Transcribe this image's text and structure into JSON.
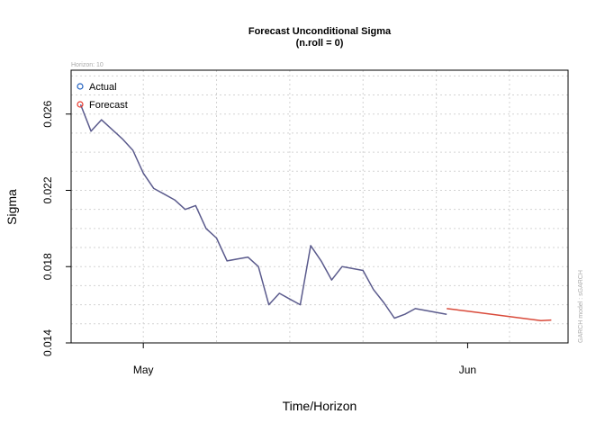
{
  "chart_data": {
    "type": "line",
    "title": "Forecast Unconditional Sigma",
    "subtitle": "(n.roll = 0)",
    "xlabel": "Time/Horizon",
    "ylabel": "Sigma",
    "top_note": "Horizon: 10",
    "side_note": "GARCH model : sGARCH",
    "xlim": [
      -6.9,
      40.6
    ],
    "ylim": [
      0.014,
      0.0283
    ],
    "x_ticks": [
      {
        "value": 0,
        "label": "May"
      },
      {
        "value": 31,
        "label": "Jun"
      }
    ],
    "y_ticks": [
      {
        "value": 0.014,
        "label": "0.014"
      },
      {
        "value": 0.018,
        "label": "0.018"
      },
      {
        "value": 0.022,
        "label": "0.022"
      },
      {
        "value": 0.026,
        "label": "0.026"
      }
    ],
    "grid": true,
    "legend_position": "top-left",
    "series": [
      {
        "name": "Actual",
        "color": "#5a5a8c",
        "marker_color": "#1f5fbf",
        "x": [
          -6,
          -5,
          -4,
          -3,
          -2,
          -1,
          0,
          1,
          2,
          3,
          4,
          5,
          6,
          7,
          8,
          9,
          10,
          11,
          12,
          13,
          14,
          15,
          16,
          17,
          18,
          19,
          20,
          21,
          22,
          23,
          24,
          25,
          26,
          27,
          28,
          29
        ],
        "y": [
          0.0265,
          0.0251,
          0.0257,
          0.0252,
          0.0247,
          0.0241,
          0.0229,
          0.0221,
          0.0218,
          0.0215,
          0.021,
          0.0212,
          0.02,
          0.0195,
          0.0183,
          0.0184,
          0.0185,
          0.018,
          0.016,
          0.0166,
          0.0163,
          0.016,
          0.0191,
          0.0183,
          0.0173,
          0.018,
          0.0179,
          0.0178,
          0.0168,
          0.0161,
          0.0153,
          0.0155,
          0.0158,
          0.0157,
          0.0156,
          0.0155
        ]
      },
      {
        "name": "Forecast",
        "color": "#d94a3a",
        "marker_color": "#e8372b",
        "x": [
          29,
          30,
          31,
          32,
          33,
          34,
          35,
          36,
          37,
          38,
          39
        ],
        "y": [
          0.0158,
          0.01573,
          0.01566,
          0.01559,
          0.01552,
          0.01545,
          0.01538,
          0.01531,
          0.01524,
          0.01517,
          0.0152
        ]
      }
    ]
  }
}
